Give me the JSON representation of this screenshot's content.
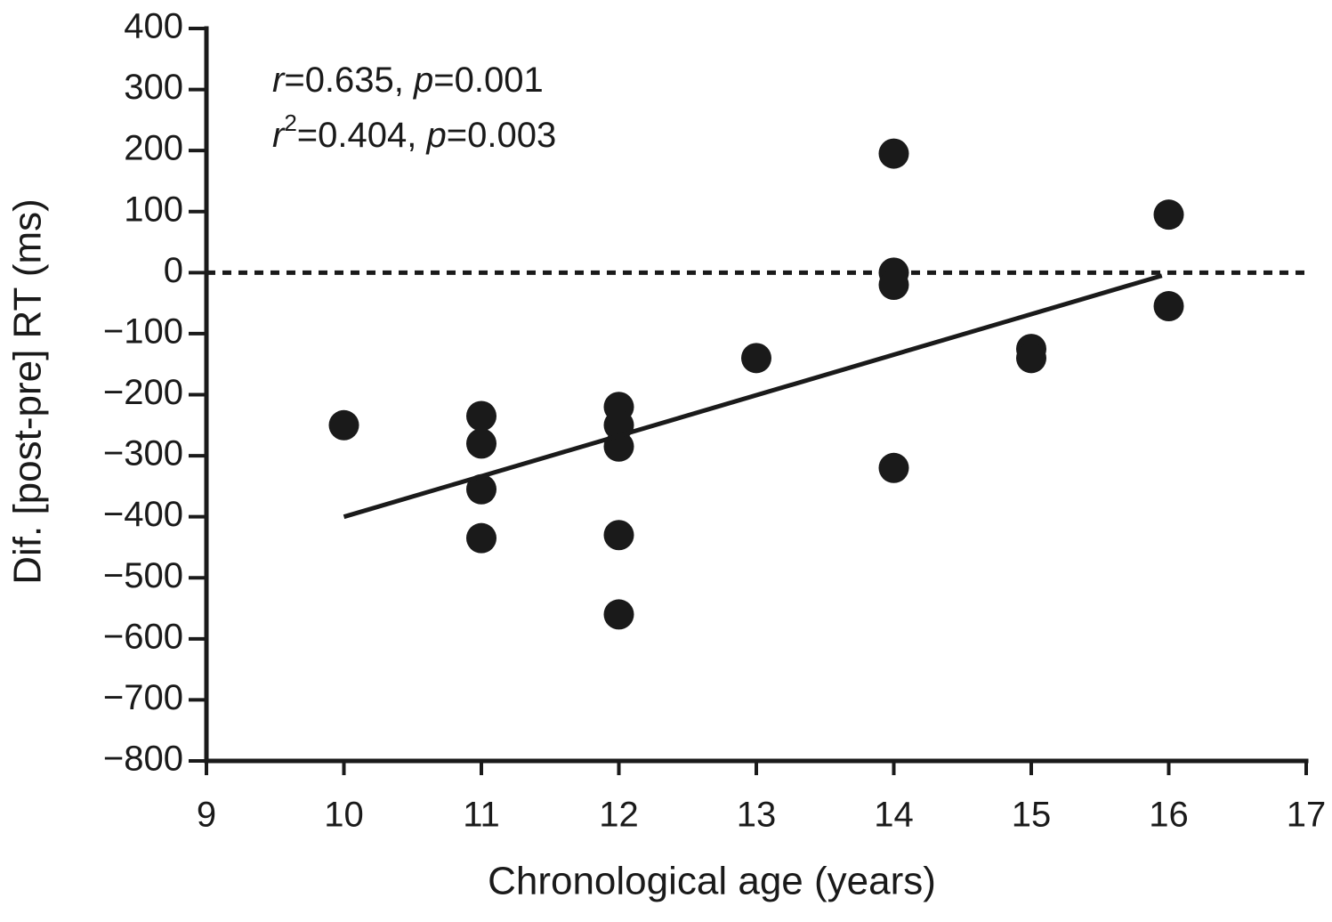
{
  "chart_data": {
    "type": "scatter",
    "x_label": "Chronological age (years)",
    "y_label": "Dif. [post-pre] RT (ms)",
    "annotations": [
      [
        {
          "text": "r",
          "style": "italic"
        },
        {
          "text": "=0.635, "
        },
        {
          "text": "p",
          "style": "italic"
        },
        {
          "text": "=0.001"
        }
      ],
      [
        {
          "text": "r",
          "style": "italic"
        },
        {
          "text": "2",
          "style": "sup"
        },
        {
          "text": "=0.404, "
        },
        {
          "text": "p",
          "style": "italic"
        },
        {
          "text": "=0.003"
        }
      ]
    ],
    "x": [
      10,
      11,
      11,
      11,
      11,
      12,
      12,
      12,
      12,
      12,
      13,
      14,
      14,
      14,
      14,
      15,
      15,
      16,
      16
    ],
    "values": [
      -250,
      -235,
      -280,
      -355,
      -435,
      -220,
      -250,
      -285,
      -430,
      -560,
      -140,
      195,
      0,
      -20,
      -320,
      -125,
      -140,
      95,
      -55
    ],
    "color": "#1a1a1a",
    "fit_line": {
      "x": [
        10,
        15.95
      ],
      "values": [
        -400,
        -5
      ]
    },
    "reference_line": 0,
    "xlim": [
      9,
      17
    ],
    "xticks": [
      9,
      10,
      11,
      12,
      13,
      14,
      15,
      16,
      17
    ],
    "ylim": [
      -800,
      400
    ],
    "yticks": [
      {
        "value": -800,
        "label": "−800"
      },
      {
        "value": -700,
        "label": "−700"
      },
      {
        "value": -600,
        "label": "−600"
      },
      {
        "value": -500,
        "label": "−500"
      },
      {
        "value": -400,
        "label": "−400"
      },
      {
        "value": -300,
        "label": "−300"
      },
      {
        "value": -200,
        "label": "−200"
      },
      {
        "value": -100,
        "label": "−100"
      },
      0,
      100,
      200,
      300,
      400
    ],
    "grid": false
  }
}
